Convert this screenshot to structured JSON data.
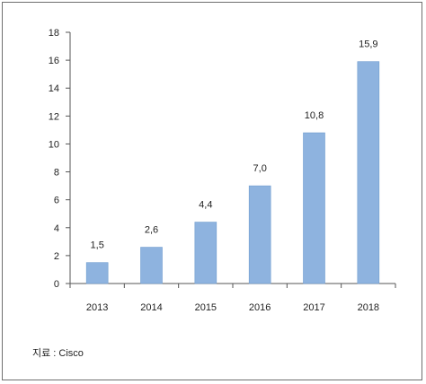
{
  "chart_data": {
    "type": "bar",
    "categories": [
      "2013",
      "2014",
      "2015",
      "2016",
      "2017",
      "2018"
    ],
    "values": [
      1.5,
      2.6,
      4.4,
      7.0,
      10.8,
      15.9
    ],
    "value_labels": [
      "1,5",
      "2,6",
      "4,4",
      "7,0",
      "10,8",
      "15,9"
    ],
    "ylim": [
      0,
      18
    ],
    "yticks": [
      0,
      2,
      4,
      6,
      8,
      10,
      12,
      14,
      16,
      18
    ],
    "grid": false,
    "bar_color": "#8eb3df",
    "bar_edge": "#6f9ccf"
  },
  "source": "지료 : Cisco"
}
